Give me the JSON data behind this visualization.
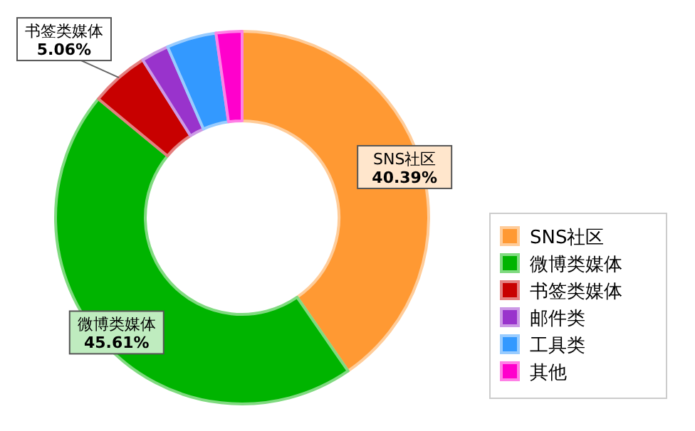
{
  "chart_data": {
    "type": "donut",
    "categories": [
      "SNS社区",
      "微博类媒体",
      "书签类媒体",
      "邮件类",
      "工具类",
      "其他"
    ],
    "values": [
      40.39,
      45.61,
      5.06,
      2.4,
      4.3,
      2.24
    ],
    "colors": [
      "#ff9933",
      "#00b400",
      "#c80000",
      "#9933cc",
      "#3399ff",
      "#ff00cc"
    ],
    "value_labels": [
      "40.39%",
      "45.61%",
      "5.06%",
      null,
      null,
      null
    ],
    "legend": "right"
  }
}
